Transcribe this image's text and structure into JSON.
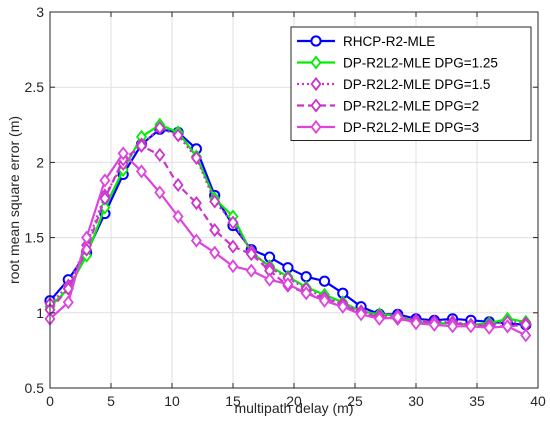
{
  "chart_data": {
    "type": "line",
    "title": "",
    "xlabel": "multipath delay (m)",
    "ylabel": "root mean square error (m)",
    "xlim": [
      0,
      40
    ],
    "ylim": [
      0.5,
      3
    ],
    "xticks": [
      0,
      5,
      10,
      15,
      20,
      25,
      30,
      35,
      40
    ],
    "yticks": [
      0.5,
      1,
      1.5,
      2,
      2.5,
      3
    ],
    "xtick_labels": [
      "0",
      "5",
      "10",
      "15",
      "20",
      "25",
      "30",
      "35",
      "40"
    ],
    "ytick_labels": [
      "0.5",
      "1",
      "1.5",
      "2",
      "2.5",
      "3"
    ],
    "grid": true,
    "legend_position": "top-right",
    "x": [
      0,
      1.5,
      3,
      4.5,
      6,
      7.5,
      9,
      10.5,
      12,
      13.5,
      15,
      16.5,
      18,
      19.5,
      21,
      22.5,
      24,
      25.5,
      27,
      28.5,
      30,
      31.5,
      33,
      34.5,
      36,
      37.5,
      39
    ],
    "series": [
      {
        "name": "RHCP-R2-MLE",
        "color": "#0000ff",
        "marker": "circle",
        "line_style": "solid",
        "values": [
          1.08,
          1.22,
          1.4,
          1.66,
          1.92,
          2.12,
          2.22,
          2.2,
          2.09,
          1.78,
          1.58,
          1.42,
          1.37,
          1.3,
          1.24,
          1.21,
          1.13,
          1.04,
          0.99,
          0.99,
          0.96,
          0.95,
          0.96,
          0.95,
          0.94,
          0.93,
          0.92
        ]
      },
      {
        "name": "DP-R2L2-MLE DPG=1.25",
        "color": "#00ee00",
        "marker": "diamond",
        "line_style": "solid",
        "values": [
          1.04,
          1.16,
          1.38,
          1.7,
          1.95,
          2.17,
          2.25,
          2.2,
          2.04,
          1.76,
          1.64,
          1.4,
          1.31,
          1.24,
          1.17,
          1.12,
          1.07,
          1.01,
          0.99,
          0.98,
          0.94,
          0.93,
          0.93,
          0.92,
          0.93,
          0.96,
          0.94
        ]
      },
      {
        "name": "DP-R2L2-MLE DPG=1.5",
        "color": "#cc33cc",
        "marker": "diamond",
        "line_style": "dotted",
        "values": [
          1.06,
          1.18,
          1.45,
          1.78,
          1.99,
          2.12,
          2.23,
          2.18,
          2.03,
          1.74,
          1.6,
          1.41,
          1.3,
          1.23,
          1.16,
          1.1,
          1.06,
          1.01,
          0.98,
          0.98,
          0.95,
          0.94,
          0.94,
          0.92,
          0.92,
          0.94,
          0.93
        ]
      },
      {
        "name": "DP-R2L2-MLE DPG=2",
        "color": "#cc33cc",
        "marker": "diamond",
        "line_style": "dashed",
        "values": [
          1.02,
          1.16,
          1.42,
          1.76,
          2.02,
          2.11,
          2.05,
          1.85,
          1.73,
          1.55,
          1.44,
          1.39,
          1.28,
          1.18,
          1.13,
          1.1,
          1.05,
          1.0,
          0.97,
          0.96,
          0.94,
          0.94,
          0.93,
          0.92,
          0.91,
          0.91,
          0.92
        ]
      },
      {
        "name": "DP-R2L2-MLE DPG=3",
        "color": "#dd44dd",
        "marker": "diamond",
        "line_style": "solid",
        "values": [
          0.96,
          1.07,
          1.5,
          1.88,
          2.06,
          1.94,
          1.8,
          1.64,
          1.48,
          1.4,
          1.31,
          1.28,
          1.22,
          1.19,
          1.13,
          1.08,
          1.04,
          0.99,
          0.96,
          0.97,
          0.93,
          0.92,
          0.91,
          0.91,
          0.9,
          0.91,
          0.85
        ]
      }
    ]
  }
}
